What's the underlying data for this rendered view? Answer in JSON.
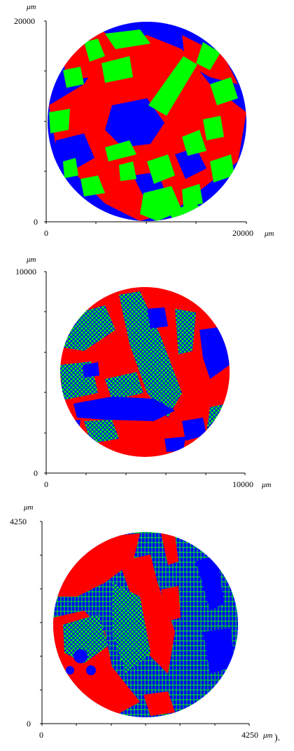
{
  "colors": {
    "red": "#ff0000",
    "green": "#00ff00",
    "blue": "#0000ff",
    "axis": "#000000"
  },
  "panels": [
    {
      "unit": "μm",
      "x_min": "0",
      "x_max": "20000",
      "y_min": "0",
      "y_max": "20000"
    },
    {
      "unit": "μm",
      "x_min": "0",
      "x_max": "10000",
      "y_min": "0",
      "y_max": "10000"
    },
    {
      "unit": "μm",
      "x_min": "0",
      "x_max": "4250",
      "y_min": "0",
      "y_max": "4250"
    }
  ],
  "trailing_text": ")."
}
